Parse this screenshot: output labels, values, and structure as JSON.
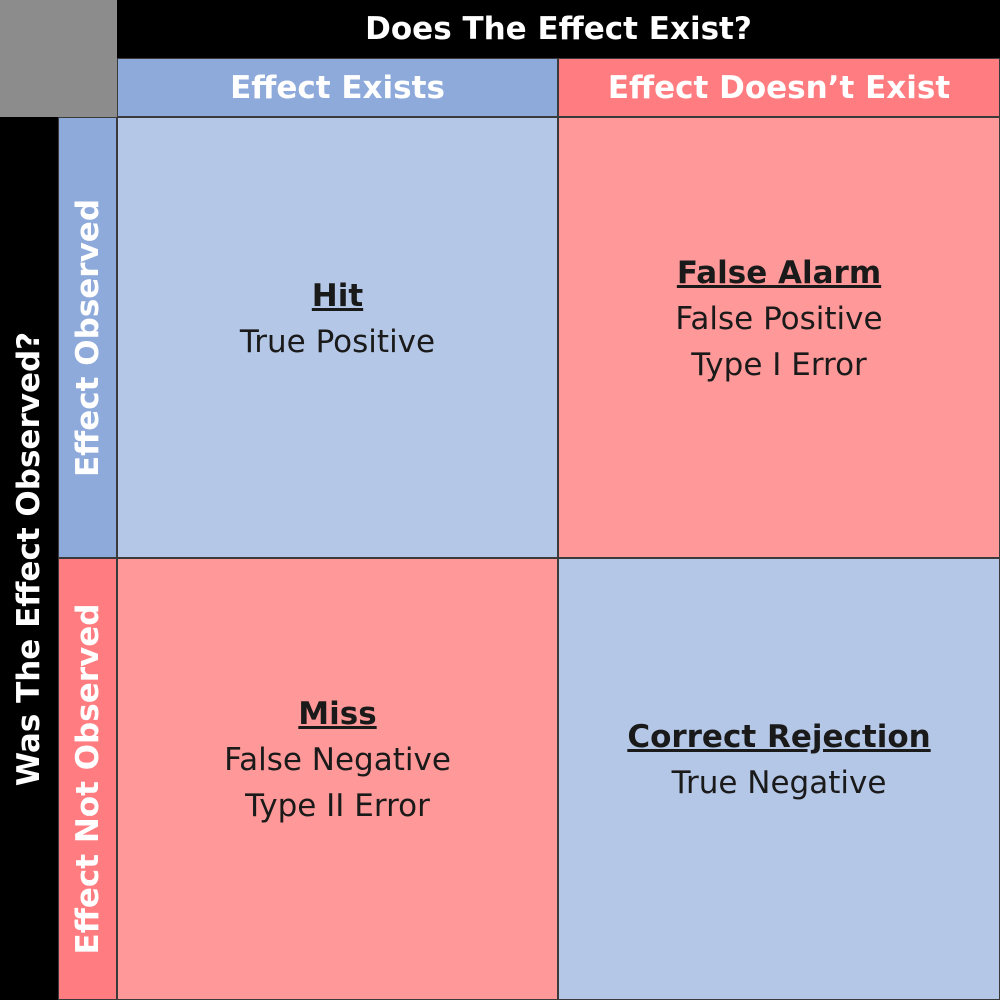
{
  "header": {
    "top_title": "Does The Effect Exist?",
    "side_title": "Was The Effect Observed?"
  },
  "columns": [
    {
      "label": "Effect Exists"
    },
    {
      "label": "Effect Doesn’t Exist"
    }
  ],
  "rows": [
    {
      "label": "Effect Observed"
    },
    {
      "label": "Effect Not Observed"
    }
  ],
  "quadrants": {
    "top_left": {
      "title": "Hit",
      "lines": [
        "True Positive"
      ]
    },
    "top_right": {
      "title": "False Alarm",
      "lines": [
        "False Positive",
        "Type I Error"
      ]
    },
    "bottom_left": {
      "title": "Miss",
      "lines": [
        "False Negative",
        "Type II Error"
      ]
    },
    "bottom_right": {
      "title": "Correct Rejection",
      "lines": [
        "True Negative"
      ]
    }
  },
  "colors": {
    "exists_header": "#8eaadb",
    "not_exists_header": "#ff7c80",
    "correct_cell": "#b4c7e7",
    "error_cell": "#ff9999",
    "header_bar": "#000000",
    "corner": "#8c8c8c"
  }
}
